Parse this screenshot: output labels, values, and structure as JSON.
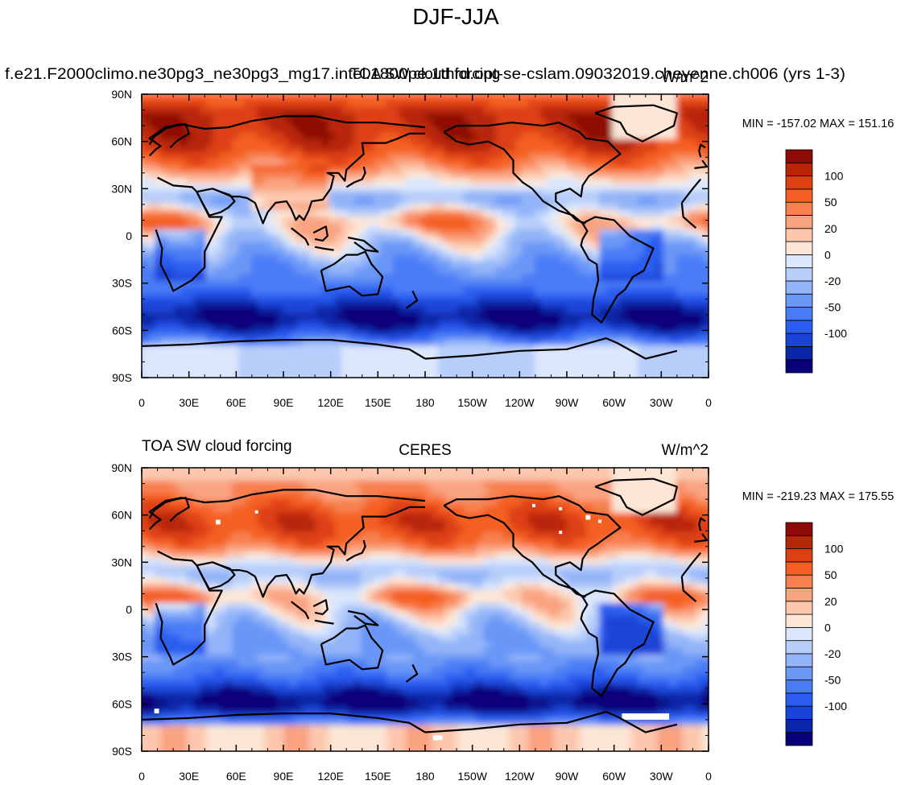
{
  "figure_title": "DJF-JJA",
  "chart_data": [
    {
      "type": "heatmap",
      "title_left": "f.e21.F2000climo.ne30pg3_ne30pg3_mg17.intel.1800pe.1thrd.opt-se-cslam.09032019.cheyenne.ch006 (yrs 1-3)",
      "title_center": "TOA SW cloud forcing",
      "title_right": "W/m^2",
      "minmax_label": "MIN = -157.02  MAX = 151.16",
      "min": -157.02,
      "max": 151.16,
      "x_tick_labels": [
        "0",
        "30E",
        "60E",
        "90E",
        "120E",
        "150E",
        "180",
        "150W",
        "120W",
        "90W",
        "60W",
        "30W",
        "0"
      ],
      "y_tick_labels": [
        "90N",
        "60N",
        "30N",
        "0",
        "30S",
        "60S",
        "90S"
      ],
      "xlim": [
        0,
        360
      ],
      "ylim": [
        -90,
        90
      ],
      "field": "model"
    },
    {
      "type": "heatmap",
      "title_left": "TOA SW cloud forcing",
      "title_center": "CERES",
      "title_right": "W/m^2",
      "minmax_label": "MIN = -219.23  MAX = 175.55",
      "min": -219.23,
      "max": 175.55,
      "x_tick_labels": [
        "0",
        "30E",
        "60E",
        "90E",
        "120E",
        "150E",
        "180",
        "150W",
        "120W",
        "90W",
        "60W",
        "30W",
        "0"
      ],
      "y_tick_labels": [
        "90N",
        "60N",
        "30N",
        "0",
        "30S",
        "60S",
        "90S"
      ],
      "xlim": [
        0,
        360
      ],
      "ylim": [
        -90,
        90
      ],
      "field": "obs"
    }
  ],
  "colorbar": {
    "colors": [
      "#08007a",
      "#0926a8",
      "#1a44d8",
      "#2a5df0",
      "#4a7cf6",
      "#6b97f7",
      "#93b4f8",
      "#b8cefa",
      "#dbe7fc",
      "#fde6d6",
      "#fcc7ad",
      "#f9a381",
      "#f88050",
      "#f45f24",
      "#dd4012",
      "#b82608",
      "#8e0a06"
    ],
    "labels": [
      "-100",
      "-50",
      "-20",
      "0",
      "20",
      "50",
      "100"
    ]
  }
}
